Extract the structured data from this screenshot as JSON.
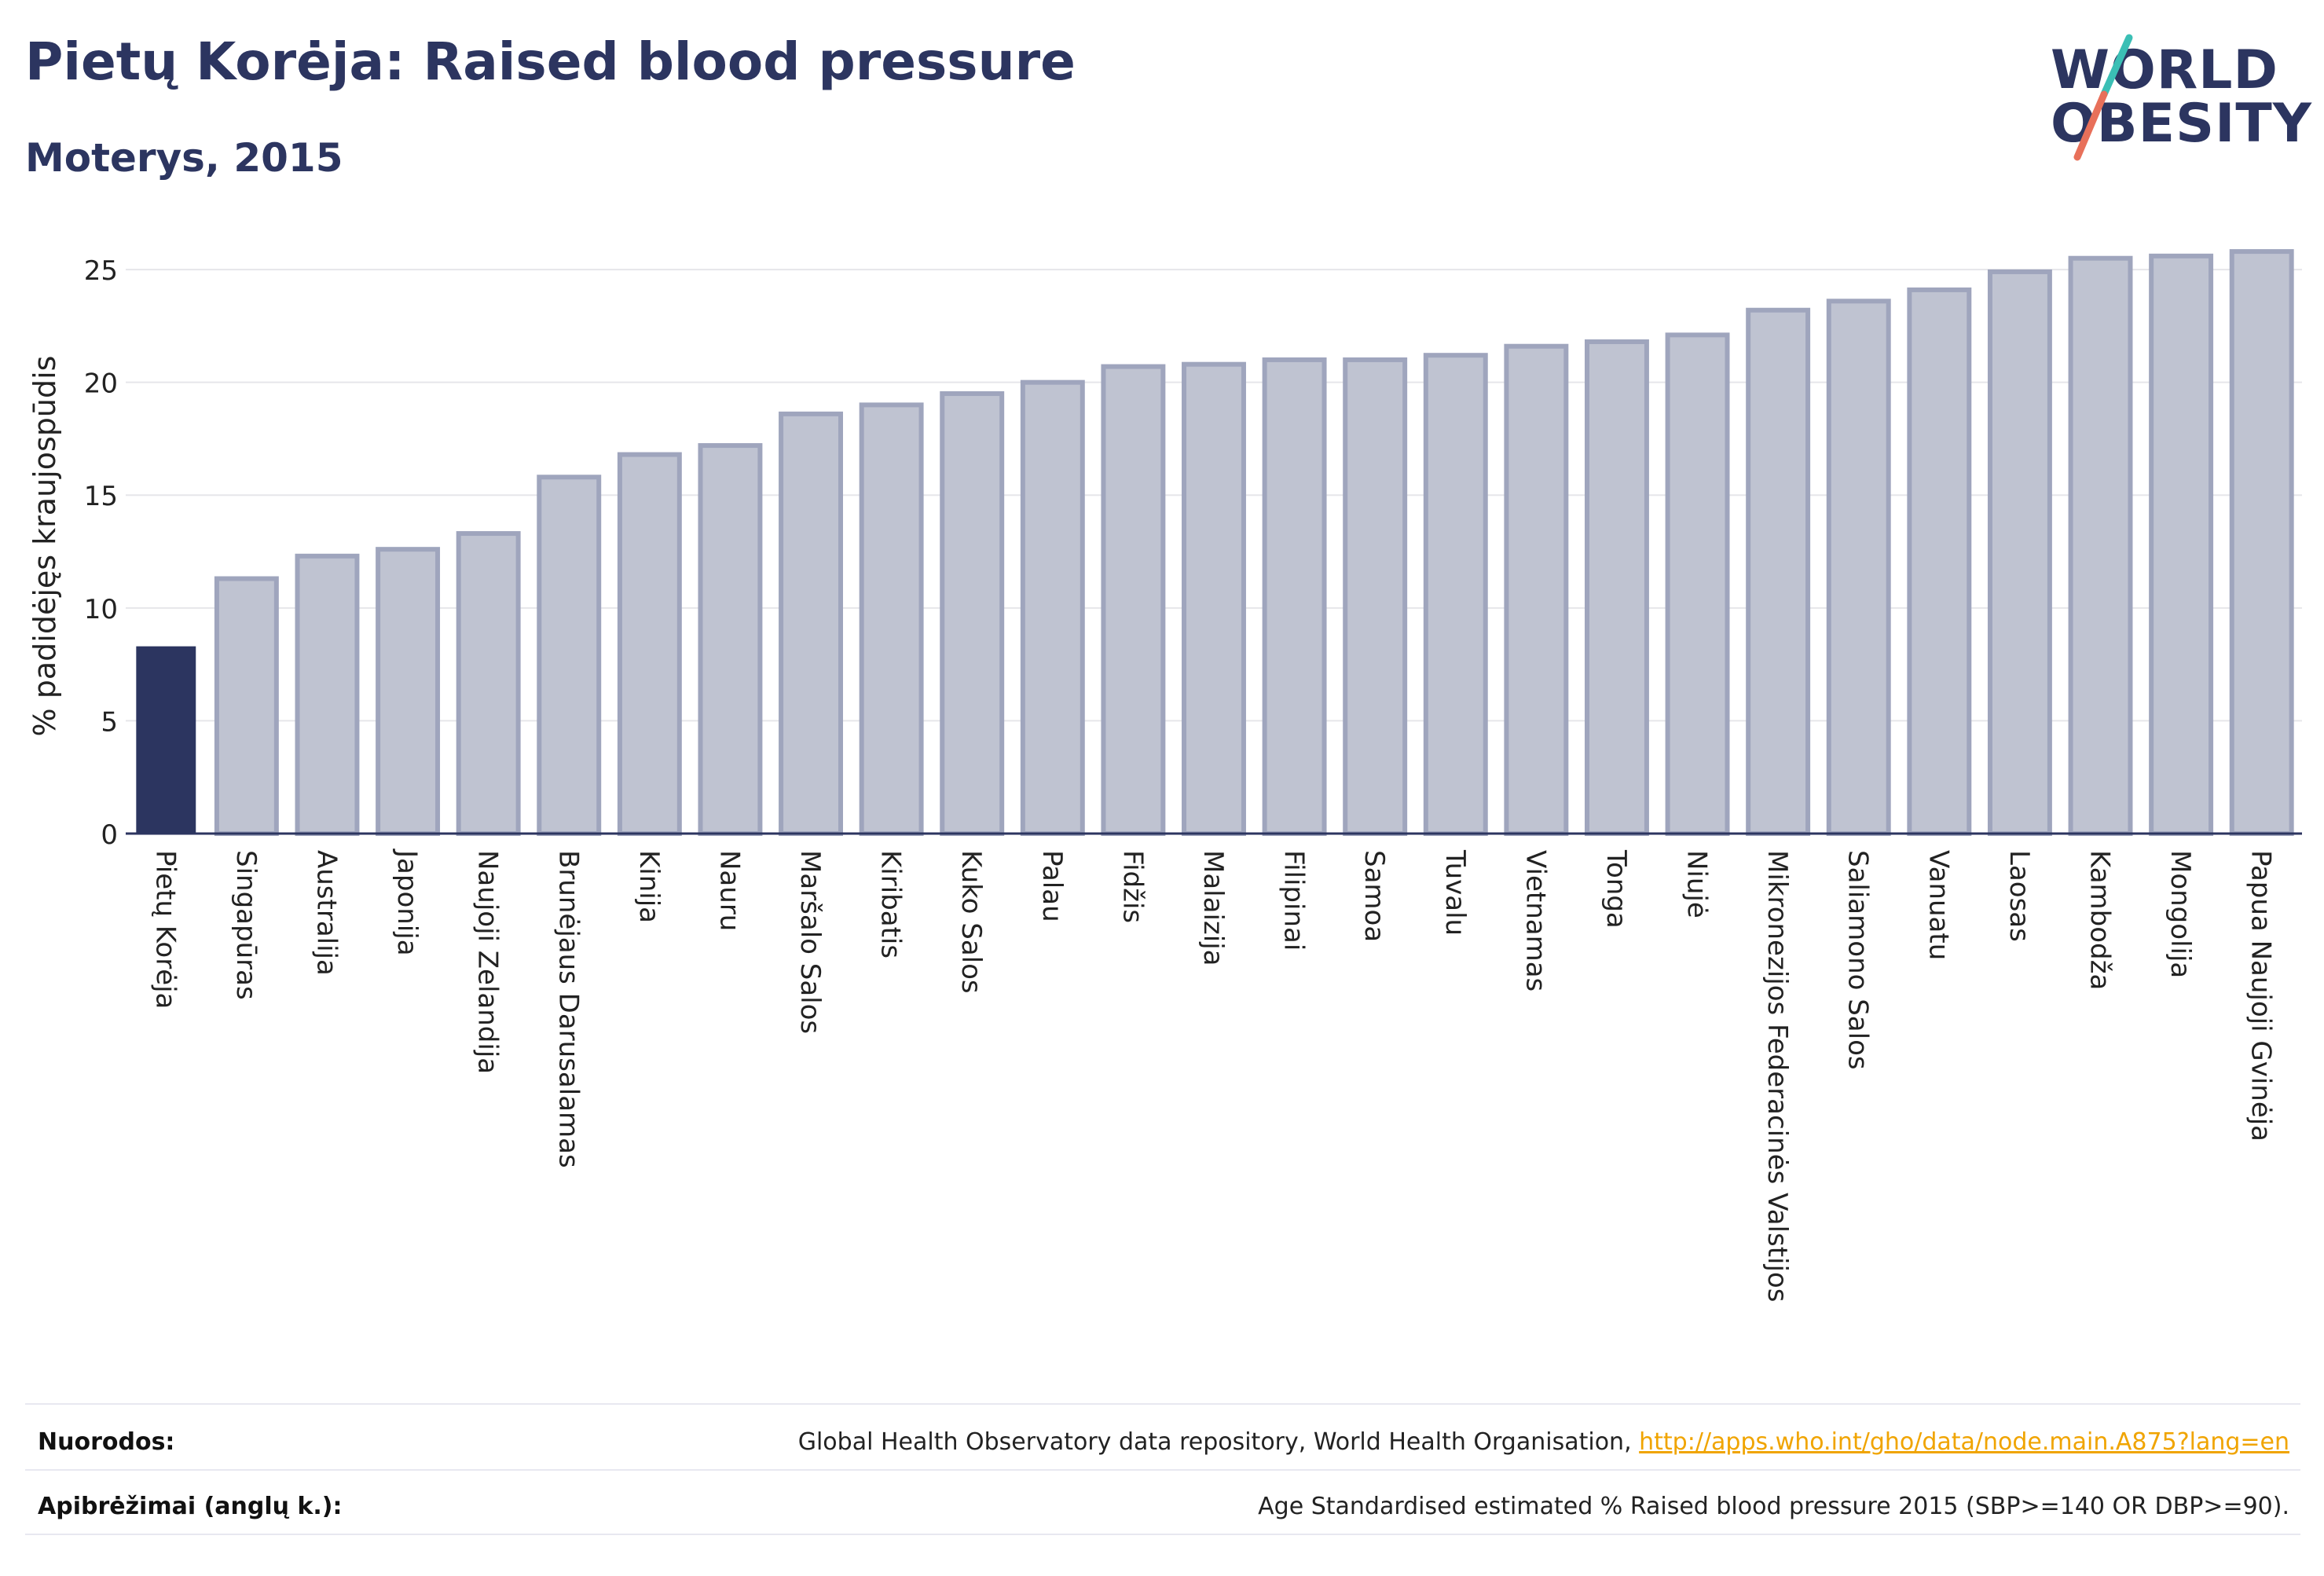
{
  "header": {
    "title": "Pietų Korėja: Raised blood pressure",
    "subtitle": "Moterys, 2015"
  },
  "logo": {
    "line1": "WORLD",
    "line2": "OBESITY"
  },
  "colors": {
    "highlight": "#2c3560",
    "bar": "#bfc3d1",
    "bar_stroke": "#9fa5bd",
    "grid": "#e6e6ea",
    "link": "#f0a400",
    "logo_teal": "#3bbfb5",
    "logo_coral": "#e8705a"
  },
  "chart_data": {
    "type": "bar",
    "ylabel": "% padidėjęs kraujospūdis",
    "ylim": [
      0,
      26.5
    ],
    "yticks": [
      0,
      5,
      10,
      15,
      20,
      25
    ],
    "grid": true,
    "highlight_category": "Pietų Korėja",
    "categories": [
      "Pietų Korėja",
      "Singapūras",
      "Australija",
      "Japonija",
      "Naujoji Zelandija",
      "Brunėjaus Darusalamas",
      "Kinija",
      "Nauru",
      "Maršalo Salos",
      "Kiribatis",
      "Kuko Salos",
      "Palau",
      "Fidžis",
      "Malaizija",
      "Filipinai",
      "Samoa",
      "Tuvalu",
      "Vietnamas",
      "Tonga",
      "Niujė",
      "Mikronezijos Federacinės Valstijos",
      "Saliamono Salos",
      "Vanuatu",
      "Laosas",
      "Kambodža",
      "Mongolija",
      "Papua Naujoji Gvinėja"
    ],
    "values": [
      8.3,
      11.3,
      12.3,
      12.6,
      13.3,
      15.8,
      16.8,
      17.2,
      18.6,
      19.0,
      19.5,
      20.0,
      20.7,
      20.8,
      21.0,
      21.0,
      21.2,
      21.6,
      21.8,
      22.1,
      23.2,
      23.6,
      24.1,
      24.9,
      25.5,
      25.6,
      25.8
    ]
  },
  "footer": {
    "sources_label": "Nuorodos:",
    "sources_text": "Global Health Observatory data repository, World Health Organisation, ",
    "sources_link": "http://apps.who.int/gho/data/node.main.A875?lang=en",
    "definitions_label": "Apibrėžimai (anglų k.):",
    "definitions_text": "Age Standardised estimated % Raised blood pressure 2015 (SBP>=140 OR DBP>=90)."
  }
}
